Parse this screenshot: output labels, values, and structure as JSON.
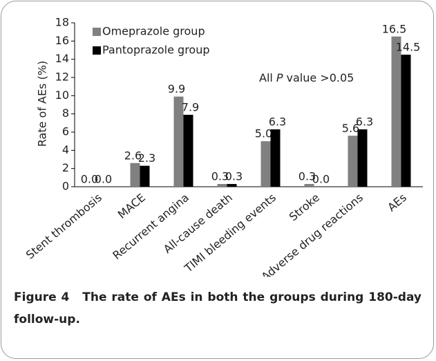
{
  "chart_data": {
    "type": "bar",
    "y_label": "Rate of AEs (%)",
    "categories": [
      "Stent thrombosis",
      "MACE",
      "Recurrent angina",
      "All-cause death",
      "TIMI bleeding events",
      "Stroke",
      "Adverse drug reactions",
      "AEs"
    ],
    "series": [
      {
        "name": "Omeprazole group",
        "color": "#808080",
        "values": [
          0.0,
          2.6,
          9.9,
          0.3,
          5.0,
          0.3,
          5.6,
          16.5
        ],
        "value_labels": [
          "0.0",
          "2.6",
          "9.9",
          "0.3",
          "5.0",
          "0.3",
          "5.6",
          "16.5"
        ]
      },
      {
        "name": "Pantoprazole group",
        "color": "#000000",
        "values": [
          0.0,
          2.3,
          7.9,
          0.3,
          6.3,
          0.0,
          6.3,
          14.5
        ],
        "value_labels": [
          "0.0",
          "2.3",
          "7.9",
          "0.3",
          "6.3",
          "0.0",
          "6.3",
          "14.5"
        ]
      }
    ],
    "annotation": {
      "prefix": "All",
      "italic": "P",
      "suffix": "value >0.05"
    },
    "ylim": [
      0,
      18
    ],
    "yticks": [
      0,
      2,
      4,
      6,
      8,
      10,
      12,
      14,
      16,
      18
    ],
    "legend": "top-left",
    "caption": {
      "label": "Figure 4",
      "text": "The rate of AEs in both the groups during 180-day follow-up."
    }
  }
}
